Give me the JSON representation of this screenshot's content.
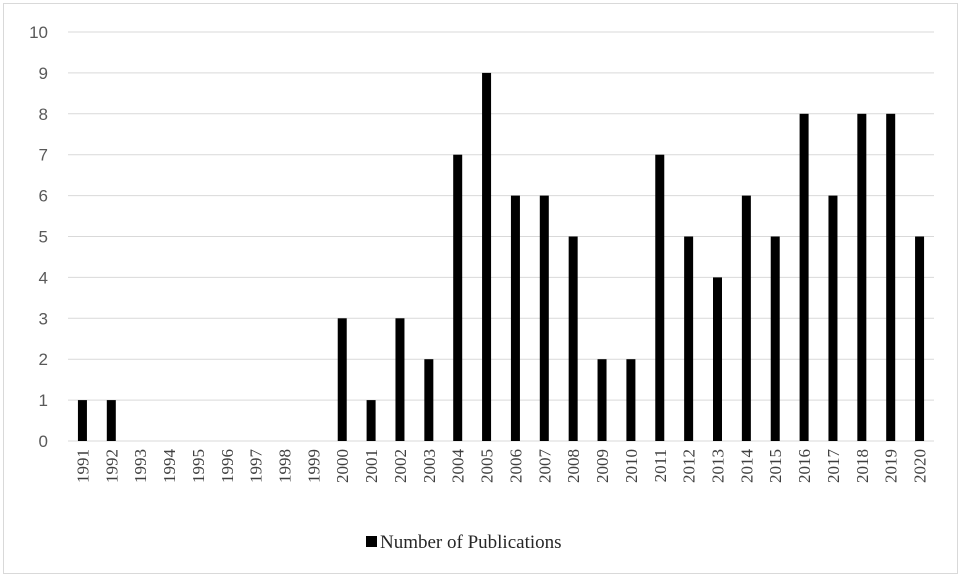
{
  "chart_data": {
    "type": "bar",
    "categories": [
      "1991",
      "1992",
      "1993",
      "1994",
      "1995",
      "1996",
      "1997",
      "1998",
      "1999",
      "2000",
      "2001",
      "2002",
      "2003",
      "2004",
      "2005",
      "2006",
      "2007",
      "2008",
      "2009",
      "2010",
      "2011",
      "2012",
      "2013",
      "2014",
      "2015",
      "2016",
      "2017",
      "2018",
      "2019",
      "2020"
    ],
    "series": [
      {
        "name": "Number of Publications",
        "values": [
          1,
          1,
          0,
          0,
          0,
          0,
          0,
          0,
          0,
          3,
          1,
          3,
          2,
          7,
          9,
          6,
          6,
          5,
          2,
          2,
          7,
          5,
          4,
          6,
          5,
          8,
          6,
          8,
          8,
          5
        ],
        "color": "#000000"
      }
    ],
    "ylim": [
      0,
      10
    ],
    "yticks": [
      0,
      1,
      2,
      3,
      4,
      5,
      6,
      7,
      8,
      9,
      10
    ],
    "grid": true,
    "legend_position": "bottom"
  }
}
